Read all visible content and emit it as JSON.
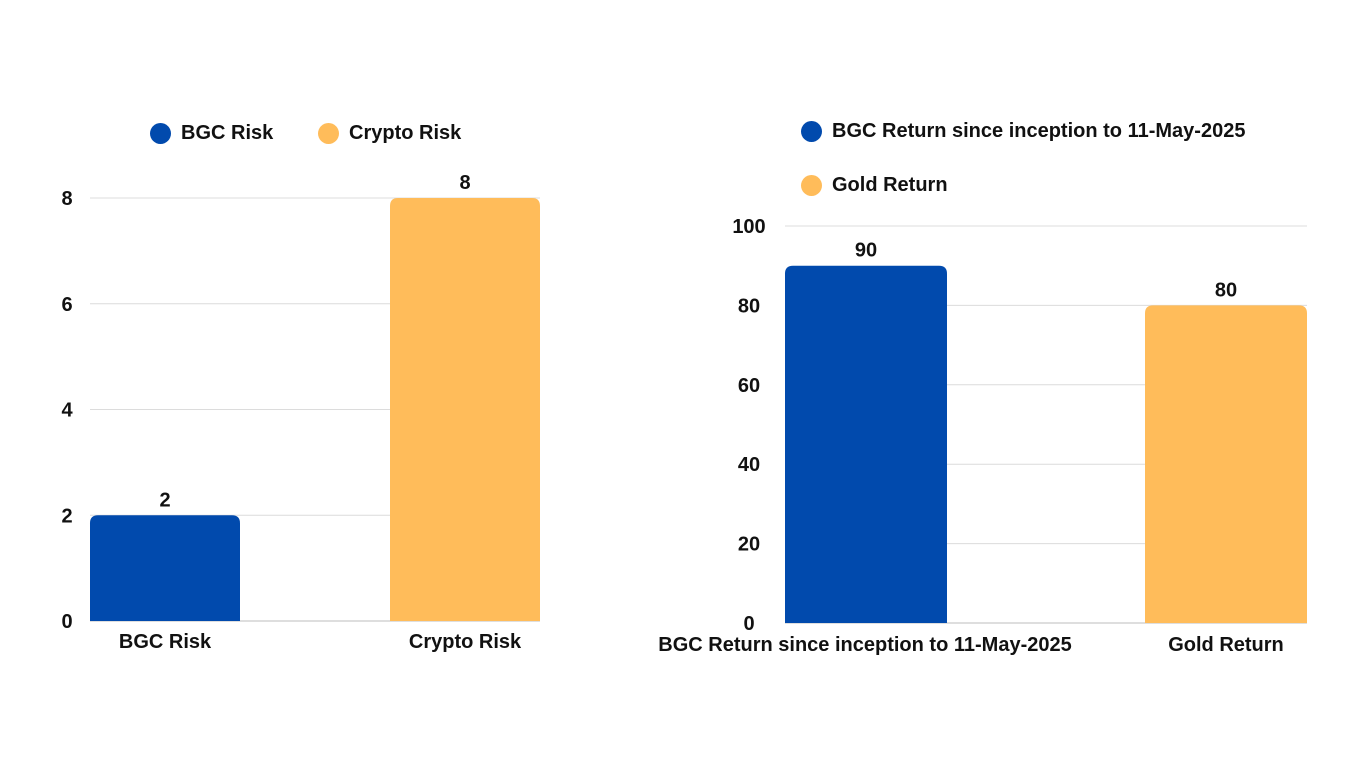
{
  "chart_data": [
    {
      "type": "bar",
      "categories": [
        "BGC Risk",
        "Crypto Risk"
      ],
      "values": [
        2,
        8
      ],
      "colors": [
        "#014aad",
        "#ffbc5a"
      ],
      "data_labels": [
        "2",
        "8"
      ],
      "ylim": [
        0,
        8
      ],
      "yticks": [
        0,
        2,
        4,
        6,
        8
      ],
      "ytick_labels": [
        "0",
        "2",
        "4",
        "6",
        "8"
      ],
      "grid": true,
      "legend": {
        "placement": "top",
        "entries": [
          {
            "label": "BGC Risk",
            "color": "#014aad"
          },
          {
            "label": "Crypto Risk",
            "color": "#ffbc5a"
          }
        ]
      }
    },
    {
      "type": "bar",
      "categories": [
        "BGC Return since inception to 11-May-2025",
        "Gold Return"
      ],
      "values": [
        90,
        80
      ],
      "colors": [
        "#014aad",
        "#ffbc5a"
      ],
      "data_labels": [
        "90",
        "80"
      ],
      "ylim": [
        0,
        100
      ],
      "yticks": [
        0,
        20,
        40,
        60,
        80,
        100
      ],
      "ytick_labels": [
        "0",
        "20",
        "40",
        "60",
        "80",
        "100"
      ],
      "grid": true,
      "legend": {
        "placement": "top",
        "entries": [
          {
            "label": "BGC Return since inception to 11-May-2025",
            "color": "#014aad"
          },
          {
            "label": "Gold Return",
            "color": "#ffbc5a"
          }
        ]
      }
    }
  ]
}
